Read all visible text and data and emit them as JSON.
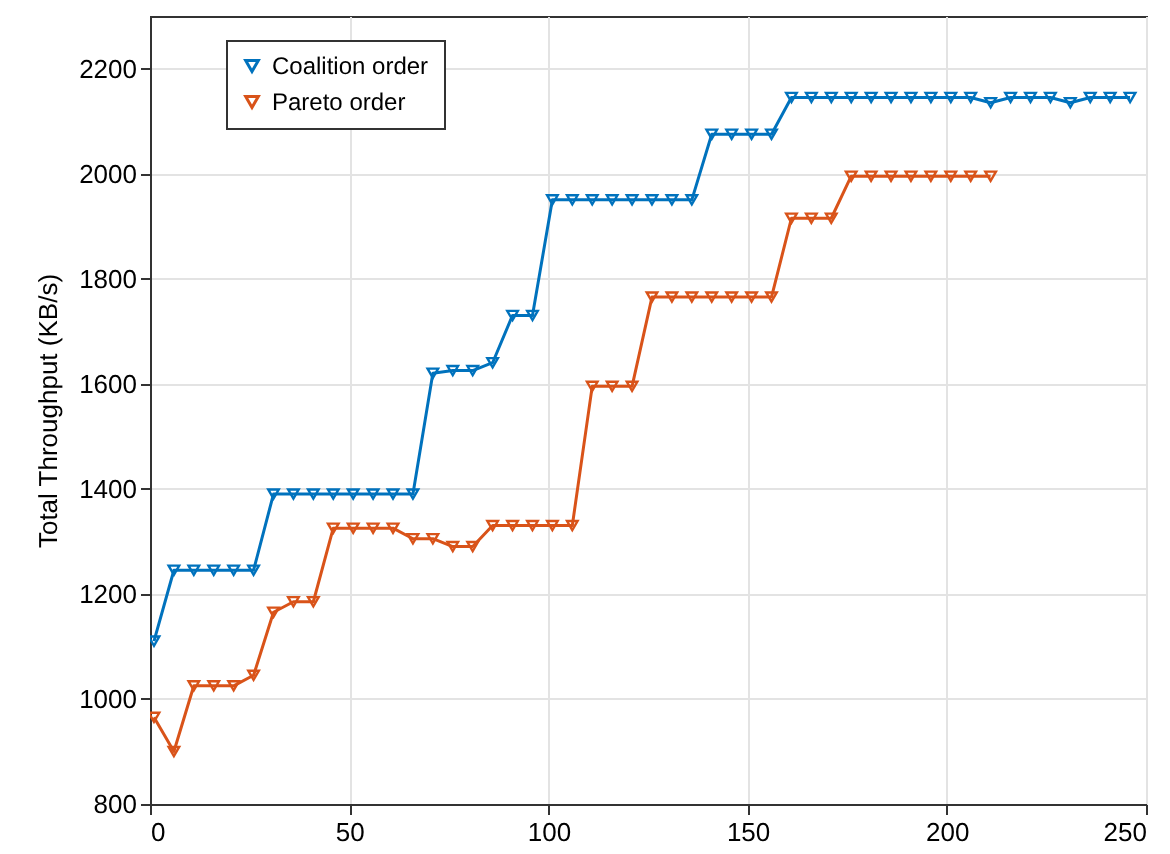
{
  "chart_data": {
    "type": "line",
    "ylabel": "Total Throughput (KB/s)",
    "xlim": [
      0,
      250
    ],
    "xticks": [
      0,
      50,
      100,
      150,
      200,
      250
    ],
    "ylim": [
      800,
      2300
    ],
    "yticks": [
      800,
      1000,
      1200,
      1400,
      1600,
      1800,
      2000,
      2200
    ],
    "grid": true,
    "legend": "top left",
    "marker": "triangle",
    "series": [
      {
        "name": "Coalition order",
        "color": "#0072bd",
        "x": [
          1,
          6,
          11,
          16,
          21,
          26,
          31,
          36,
          41,
          46,
          51,
          56,
          61,
          66,
          71,
          76,
          81,
          86,
          91,
          96,
          101,
          106,
          111,
          116,
          121,
          126,
          131,
          136,
          141,
          146,
          151,
          156,
          161,
          166,
          171,
          176,
          181,
          186,
          191,
          196,
          201,
          206,
          211,
          216,
          221,
          226,
          231,
          236,
          241,
          246
        ],
        "values": [
          1110,
          1245,
          1245,
          1245,
          1245,
          1245,
          1390,
          1390,
          1390,
          1390,
          1390,
          1390,
          1390,
          1390,
          1620,
          1625,
          1625,
          1640,
          1730,
          1730,
          1950,
          1950,
          1950,
          1950,
          1950,
          1950,
          1950,
          1950,
          2075,
          2075,
          2075,
          2075,
          2145,
          2145,
          2145,
          2145,
          2145,
          2145,
          2145,
          2145,
          2145,
          2145,
          2135,
          2145,
          2145,
          2145,
          2135,
          2145,
          2145,
          2145
        ]
      },
      {
        "name": "Pareto order",
        "color": "#d95319",
        "x": [
          1,
          6,
          11,
          16,
          21,
          26,
          31,
          36,
          41,
          46,
          51,
          56,
          61,
          66,
          71,
          76,
          81,
          86,
          91,
          96,
          101,
          106,
          111,
          116,
          121,
          126,
          131,
          136,
          141,
          146,
          151,
          156,
          161,
          166,
          171,
          176,
          181,
          186,
          191,
          196,
          201,
          206,
          211
        ],
        "values": [
          965,
          900,
          1025,
          1025,
          1025,
          1045,
          1165,
          1185,
          1185,
          1325,
          1325,
          1325,
          1325,
          1305,
          1305,
          1290,
          1290,
          1330,
          1330,
          1330,
          1330,
          1330,
          1595,
          1595,
          1595,
          1765,
          1765,
          1765,
          1765,
          1765,
          1765,
          1765,
          1915,
          1915,
          1915,
          1995,
          1995,
          1995,
          1995,
          1995,
          1995,
          1995,
          1995
        ]
      }
    ]
  }
}
